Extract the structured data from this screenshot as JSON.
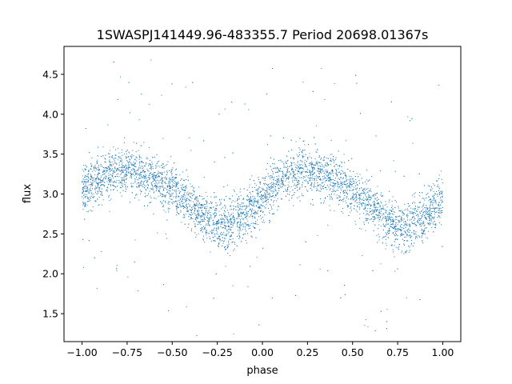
{
  "chart_data": {
    "type": "scatter",
    "title": "1SWASPJ141449.96-483355.7 Period 20698.01367s",
    "xlabel": "phase",
    "ylabel": "flux",
    "xlim": [
      -1.1,
      1.1
    ],
    "ylim": [
      1.15,
      4.85
    ],
    "x_ticks": [
      -1.0,
      -0.75,
      -0.5,
      -0.25,
      0.0,
      0.25,
      0.5,
      0.75,
      1.0
    ],
    "x_tick_labels": [
      "−1.00",
      "−0.75",
      "−0.50",
      "−0.25",
      "0.00",
      "0.25",
      "0.50",
      "0.75",
      "1.00"
    ],
    "y_ticks": [
      1.5,
      2.0,
      2.5,
      3.0,
      3.5,
      4.0,
      4.5
    ],
    "y_tick_labels": [
      "1.5",
      "2.0",
      "2.5",
      "3.0",
      "3.5",
      "4.0",
      "4.5"
    ],
    "grid": false,
    "legend": "none",
    "marker_color": "#1f77b4",
    "series": [
      {
        "x": [
          -1.0,
          -0.9,
          -0.8,
          -0.75,
          -0.7,
          -0.6,
          -0.5,
          -0.4,
          -0.3,
          -0.25,
          -0.2,
          -0.1,
          0.0,
          0.1,
          0.2,
          0.25,
          0.3,
          0.4,
          0.5,
          0.6,
          0.7,
          0.75,
          0.8,
          0.9,
          1.0
        ],
        "y": [
          3.05,
          3.2,
          3.28,
          3.3,
          3.28,
          3.2,
          3.05,
          2.85,
          2.68,
          2.62,
          2.6,
          2.72,
          2.95,
          3.15,
          3.27,
          3.3,
          3.27,
          3.18,
          3.05,
          2.85,
          2.65,
          2.58,
          2.58,
          2.7,
          2.95
        ],
        "scatter_sd": 0.15
      }
    ]
  }
}
